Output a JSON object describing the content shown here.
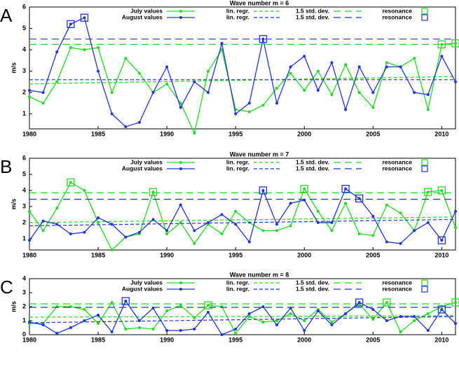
{
  "chart_data": [
    {
      "type": "line",
      "label": "A",
      "title": "Wave number m = 6",
      "ylabel": "m/s",
      "x": [
        1980,
        1981,
        1982,
        1983,
        1984,
        1985,
        1986,
        1987,
        1988,
        1989,
        1990,
        1991,
        1992,
        1993,
        1994,
        1995,
        1996,
        1997,
        1998,
        1999,
        2000,
        2001,
        2002,
        2003,
        2004,
        2005,
        2006,
        2007,
        2008,
        2009,
        2010,
        2011
      ],
      "xlim": [
        1980,
        2011
      ],
      "xticks": [
        1980,
        1985,
        1990,
        1995,
        2000,
        2005,
        2010
      ],
      "ylim": [
        0.3,
        6
      ],
      "yticks": [
        1,
        2,
        3,
        4,
        5,
        6
      ],
      "series": [
        {
          "name": "July values",
          "color": "#22dd22",
          "values": [
            1.8,
            1.5,
            2.5,
            4.1,
            4.0,
            4.1,
            2.0,
            3.6,
            2.9,
            2.0,
            2.4,
            1.5,
            0.1,
            3.0,
            4.0,
            1.2,
            1.1,
            1.4,
            2.2,
            2.9,
            2.1,
            3.0,
            1.9,
            3.3,
            2.0,
            1.3,
            3.4,
            3.2,
            3.6,
            1.2,
            4.25,
            4.3
          ],
          "regression": {
            "name": "lin. regr.",
            "values": [
              2.4,
              2.75
            ]
          },
          "std_dev": {
            "name": "1.5 std. dev.",
            "value": 4.25
          },
          "resonance": {
            "name": "resonance",
            "x": [
              2010,
              2011
            ]
          }
        },
        {
          "name": "August values",
          "color": "#2233dd",
          "values": [
            2.1,
            2.0,
            3.9,
            5.2,
            5.5,
            3.0,
            1.0,
            0.4,
            0.6,
            2.0,
            3.2,
            1.3,
            2.5,
            2.0,
            4.3,
            1.0,
            1.5,
            4.5,
            1.5,
            3.2,
            3.7,
            2.1,
            3.4,
            1.2,
            3.2,
            2.0,
            3.2,
            3.2,
            2.0,
            1.9,
            3.7,
            2.5
          ],
          "regression": {
            "name": "lin. regr.",
            "values": [
              2.6,
              2.6
            ]
          },
          "std_dev": {
            "name": "1.5 std. dev.",
            "value": 4.5
          },
          "resonance": {
            "name": "resonance",
            "x": [
              1983,
              1984,
              1997
            ]
          }
        }
      ]
    },
    {
      "type": "line",
      "label": "B",
      "title": "Wave number m = 7",
      "ylabel": "m/s",
      "x": [
        1980,
        1981,
        1982,
        1983,
        1984,
        1985,
        1986,
        1987,
        1988,
        1989,
        1990,
        1991,
        1992,
        1993,
        1994,
        1995,
        1996,
        1997,
        1998,
        1999,
        2000,
        2001,
        2002,
        2003,
        2004,
        2005,
        2006,
        2007,
        2008,
        2009,
        2010,
        2011
      ],
      "xlim": [
        1980,
        2011
      ],
      "xticks": [
        1980,
        1985,
        1990,
        1995,
        2000,
        2005,
        2010
      ],
      "ylim": [
        0.3,
        6
      ],
      "yticks": [
        1,
        2,
        3,
        4,
        5,
        6
      ],
      "series": [
        {
          "name": "July values",
          "color": "#22dd22",
          "values": [
            2.7,
            1.5,
            2.9,
            4.5,
            4.0,
            2.0,
            0.3,
            1.1,
            1.3,
            3.9,
            1.3,
            2.0,
            0.7,
            1.9,
            1.3,
            2.7,
            2.0,
            1.5,
            1.5,
            1.8,
            4.1,
            2.7,
            1.5,
            3.2,
            1.3,
            1.2,
            3.1,
            2.6,
            1.5,
            3.9,
            4.0,
            1.7
          ],
          "regression": {
            "name": "lin. regr.",
            "values": [
              2.0,
              2.35
            ]
          },
          "std_dev": {
            "name": "1.5 std. dev.",
            "value": 3.85
          },
          "resonance": {
            "name": "resonance",
            "x": [
              1983,
              1989,
              2000,
              2009,
              2010
            ]
          }
        },
        {
          "name": "August values",
          "color": "#2233dd",
          "values": [
            0.9,
            2.1,
            1.9,
            1.3,
            1.4,
            2.3,
            1.9,
            1.1,
            1.4,
            2.2,
            1.5,
            3.1,
            1.5,
            2.0,
            2.5,
            1.9,
            0.8,
            4.0,
            1.9,
            3.2,
            3.4,
            2.0,
            2.0,
            4.1,
            3.5,
            2.4,
            0.8,
            0.7,
            1.5,
            2.0,
            0.9,
            2.7
          ],
          "regression": {
            "name": "lin. regr.",
            "values": [
              1.8,
              2.2
            ]
          },
          "std_dev": {
            "name": "1.5 std. dev.",
            "value": 3.45
          },
          "resonance": {
            "name": "resonance",
            "x": [
              1997,
              2003,
              2004,
              2010
            ]
          }
        }
      ]
    },
    {
      "type": "line",
      "label": "C",
      "title": "Wave number m = 8",
      "ylabel": "m/s",
      "x": [
        1980,
        1981,
        1982,
        1983,
        1984,
        1985,
        1986,
        1987,
        1988,
        1989,
        1990,
        1991,
        1992,
        1993,
        1994,
        1995,
        1996,
        1997,
        1998,
        1999,
        2000,
        2001,
        2002,
        2003,
        2004,
        2005,
        2006,
        2007,
        2008,
        2009,
        2010,
        2011
      ],
      "xlim": [
        1980,
        2011
      ],
      "xticks": [
        1980,
        1985,
        1990,
        1995,
        2000,
        2005,
        2010
      ],
      "ylim": [
        0,
        4
      ],
      "yticks": [
        0,
        1,
        2,
        3,
        4
      ],
      "series": [
        {
          "name": "July values",
          "color": "#22dd22",
          "values": [
            0.8,
            0.8,
            2.0,
            2.0,
            1.8,
            0.8,
            2.3,
            0.4,
            0.5,
            0.4,
            1.7,
            2.1,
            1.2,
            2.1,
            2.0,
            0.1,
            1.3,
            0.9,
            1.0,
            1.5,
            1.0,
            1.8,
            0.9,
            1.5,
            2.2,
            1.1,
            2.3,
            0.2,
            1.0,
            1.5,
            2.0,
            2.3
          ],
          "regression": {
            "name": "lin. regr.",
            "values": [
              1.25,
              1.35
            ]
          },
          "std_dev": {
            "name": "1.5 std. dev.",
            "value": 2.2
          },
          "resonance": {
            "name": "resonance",
            "x": [
              1993,
              2006,
              2011
            ]
          }
        },
        {
          "name": "August values",
          "color": "#2233dd",
          "values": [
            0.9,
            0.7,
            0.1,
            0.5,
            1.0,
            1.4,
            0.2,
            2.4,
            1.0,
            1.9,
            0.3,
            0.3,
            0.4,
            1.6,
            0.0,
            0.4,
            1.5,
            2.0,
            0.7,
            1.9,
            0.3,
            1.7,
            0.7,
            1.5,
            2.3,
            1.8,
            1.0,
            1.3,
            1.3,
            0.3,
            1.8,
            0.8
          ],
          "regression": {
            "name": "lin. regr.",
            "values": [
              0.85,
              1.3
            ]
          },
          "std_dev": {
            "name": "1.5 std. dev.",
            "value": 1.95
          },
          "resonance": {
            "name": "resonance",
            "x": [
              1987,
              2004,
              2010
            ]
          }
        }
      ]
    }
  ]
}
